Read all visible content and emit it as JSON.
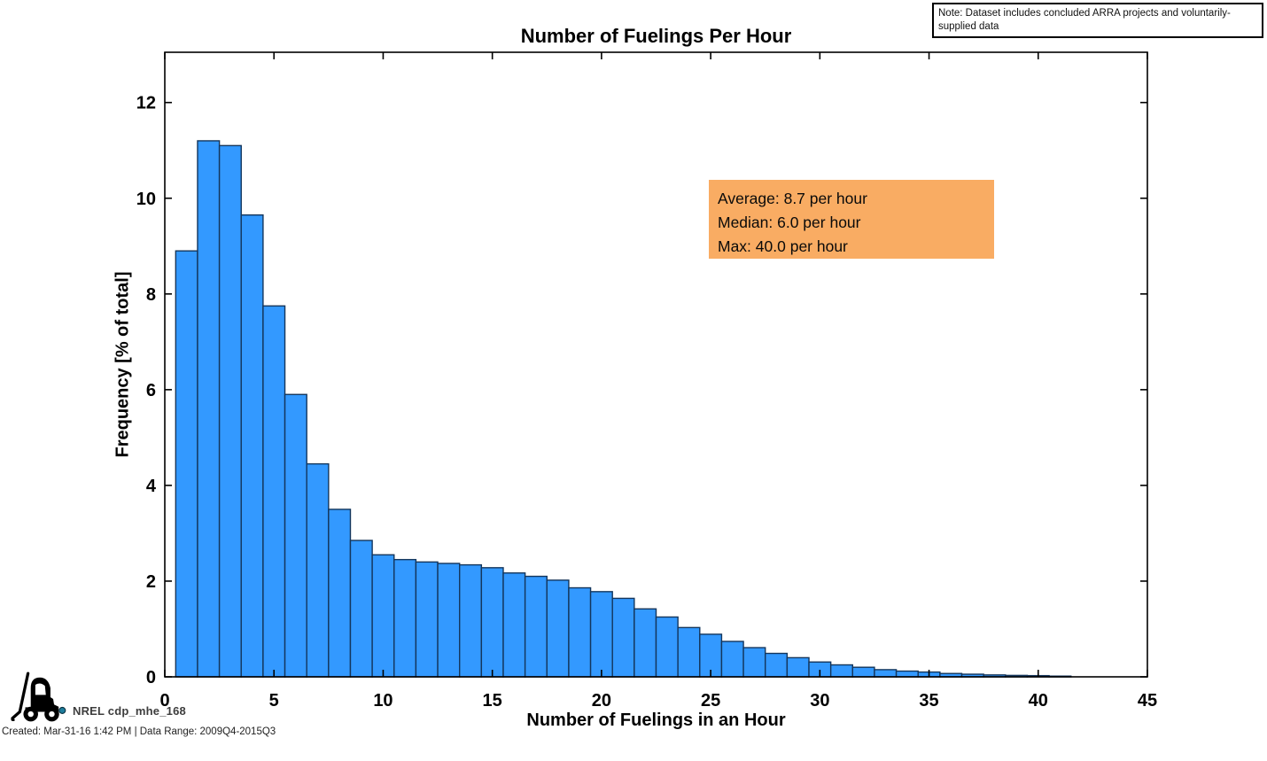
{
  "title": "Number of Fuelings Per Hour",
  "note_box": {
    "text": "Note: Dataset includes concluded ARRA projects and voluntarily-supplied data"
  },
  "stats_box": {
    "bg_color": "#F9AC63",
    "lines": [
      "Average: 8.7 per hour",
      "Median: 6.0 per hour",
      "Max: 40.0 per hour"
    ]
  },
  "footer": {
    "logo_label": "NREL cdp_mhe_168",
    "created_line": "Created: Mar-31-16 1:42 PM | Data Range: 2009Q4-2015Q3"
  },
  "logo": {
    "icon": "forklift",
    "color": "#000000",
    "dot_color": "#1E7D9C"
  },
  "chart_data": {
    "type": "bar",
    "title": "Number of Fuelings Per Hour",
    "xlabel": "Number of Fuelings in an Hour",
    "ylabel": "Frequency [% of total]",
    "xlim": [
      0,
      45
    ],
    "ylim": [
      0,
      13.05
    ],
    "x_ticks": [
      0,
      5,
      10,
      15,
      20,
      25,
      30,
      35,
      40,
      45
    ],
    "y_ticks": [
      0,
      2,
      4,
      6,
      8,
      10,
      12
    ],
    "grid": false,
    "legend": "none",
    "bar_width": 1,
    "bar_color": "#3399FF",
    "bar_edge_color": "#14365C",
    "axis_color": "#000000",
    "x": [
      1,
      2,
      3,
      4,
      5,
      6,
      7,
      8,
      9,
      10,
      11,
      12,
      13,
      14,
      15,
      16,
      17,
      18,
      19,
      20,
      21,
      22,
      23,
      24,
      25,
      26,
      27,
      28,
      29,
      30,
      31,
      32,
      33,
      34,
      35,
      36,
      37,
      38,
      39,
      40,
      41
    ],
    "values": [
      8.9,
      11.2,
      11.1,
      9.65,
      7.75,
      5.9,
      4.45,
      3.5,
      2.85,
      2.55,
      2.45,
      2.4,
      2.37,
      2.34,
      2.28,
      2.17,
      2.1,
      2.02,
      1.86,
      1.78,
      1.64,
      1.42,
      1.25,
      1.03,
      0.89,
      0.74,
      0.61,
      0.49,
      0.4,
      0.31,
      0.25,
      0.2,
      0.15,
      0.12,
      0.1,
      0.07,
      0.055,
      0.04,
      0.03,
      0.025,
      0.015
    ],
    "annotations": {
      "average_per_hour": 8.7,
      "median_per_hour": 6.0,
      "max_per_hour": 40.0
    }
  }
}
